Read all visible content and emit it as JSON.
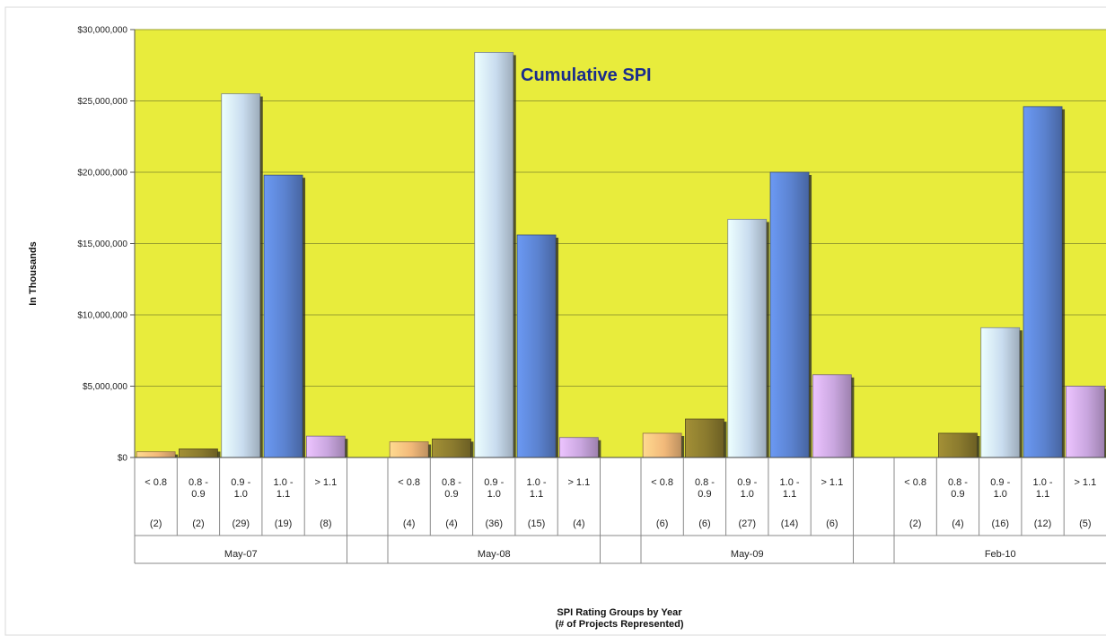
{
  "chart_data": {
    "type": "bar",
    "title": "Cumulative SPI",
    "ylabel": "In Thousands",
    "xlabel_line1": "SPI Rating Groups by Year",
    "xlabel_line2": "(# of Projects Represented)",
    "ylim": [
      0,
      30000000
    ],
    "yticks": [
      {
        "value": 0,
        "label": "$0"
      },
      {
        "value": 5000000,
        "label": "$5,000,000"
      },
      {
        "value": 10000000,
        "label": "$10,000,000"
      },
      {
        "value": 15000000,
        "label": "$15,000,000"
      },
      {
        "value": 20000000,
        "label": "$20,000,000"
      },
      {
        "value": 25000000,
        "label": "$25,000,000"
      },
      {
        "value": 30000000,
        "label": "$30,000,000"
      }
    ],
    "grid": true,
    "plot_background": "#e8ec3c",
    "colors": {
      "lt0_8": "#f2b97a",
      "r0_8_0_9": "#8a7a2e",
      "r0_9_1_0": "#c9dcef",
      "r1_0_1_1": "#5b82cf",
      "gt1_1": "#c9a6df"
    },
    "groups": [
      {
        "name": "May-07",
        "bars": [
          {
            "label": "< 0.8",
            "count": "(2)",
            "value": 400000,
            "color_key": "lt0_8"
          },
          {
            "label": "0.8 - 0.9",
            "count": "(2)",
            "value": 600000,
            "color_key": "r0_8_0_9"
          },
          {
            "label": "0.9 - 1.0",
            "count": "(29)",
            "value": 25500000,
            "color_key": "r0_9_1_0"
          },
          {
            "label": "1.0 - 1.1",
            "count": "(19)",
            "value": 19800000,
            "color_key": "r1_0_1_1"
          },
          {
            "label": "> 1.1",
            "count": "(8)",
            "value": 1500000,
            "color_key": "gt1_1"
          }
        ]
      },
      {
        "name": "May-08",
        "bars": [
          {
            "label": "< 0.8",
            "count": "(4)",
            "value": 1100000,
            "color_key": "lt0_8"
          },
          {
            "label": "0.8 - 0.9",
            "count": "(4)",
            "value": 1300000,
            "color_key": "r0_8_0_9"
          },
          {
            "label": "0.9 - 1.0",
            "count": "(36)",
            "value": 28400000,
            "color_key": "r0_9_1_0"
          },
          {
            "label": "1.0 - 1.1",
            "count": "(15)",
            "value": 15600000,
            "color_key": "r1_0_1_1"
          },
          {
            "label": "> 1.1",
            "count": "(4)",
            "value": 1400000,
            "color_key": "gt1_1"
          }
        ]
      },
      {
        "name": "May-09",
        "bars": [
          {
            "label": "< 0.8",
            "count": "(6)",
            "value": 1700000,
            "color_key": "lt0_8"
          },
          {
            "label": "0.8 - 0.9",
            "count": "(6)",
            "value": 2700000,
            "color_key": "r0_8_0_9"
          },
          {
            "label": "0.9 - 1.0",
            "count": "(27)",
            "value": 16700000,
            "color_key": "r0_9_1_0"
          },
          {
            "label": "1.0 - 1.1",
            "count": "(14)",
            "value": 20000000,
            "color_key": "r1_0_1_1"
          },
          {
            "label": "> 1.1",
            "count": "(6)",
            "value": 5800000,
            "color_key": "gt1_1"
          }
        ]
      },
      {
        "name": "Feb-10",
        "bars": [
          {
            "label": "< 0.8",
            "count": "(2)",
            "value": 0,
            "color_key": "lt0_8"
          },
          {
            "label": "0.8 - 0.9",
            "count": "(4)",
            "value": 1700000,
            "color_key": "r0_8_0_9"
          },
          {
            "label": "0.9 - 1.0",
            "count": "(16)",
            "value": 9100000,
            "color_key": "r0_9_1_0"
          },
          {
            "label": "1.0 - 1.1",
            "count": "(12)",
            "value": 24600000,
            "color_key": "r1_0_1_1"
          },
          {
            "label": "> 1.1",
            "count": "(5)",
            "value": 5000000,
            "color_key": "gt1_1"
          }
        ]
      }
    ]
  }
}
